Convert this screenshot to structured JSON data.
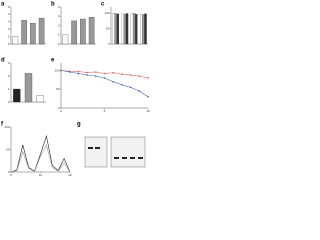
{
  "chart_data": [
    {
      "type": "bar",
      "title": "a",
      "categories": [
        null,
        null,
        null,
        null
      ],
      "values": [
        1,
        3.2,
        2.8,
        3.5
      ],
      "colors": [
        "#ffffff",
        "#999999",
        "#999999",
        "#999999"
      ],
      "ylim": [
        0,
        5
      ],
      "yticks": [
        0,
        1,
        2,
        3,
        4,
        5
      ]
    },
    {
      "type": "bar",
      "title": "b",
      "categories": [
        null,
        null,
        null,
        null
      ],
      "values": [
        1,
        2.5,
        2.7,
        2.9
      ],
      "colors": [
        "#ffffff",
        "#999999",
        "#999999",
        "#999999"
      ],
      "ylim": [
        0,
        4
      ],
      "yticks": [
        0,
        1,
        2,
        3,
        4
      ]
    },
    {
      "type": "grouped",
      "title": "c",
      "categories": [
        null,
        null,
        null,
        null
      ],
      "series": [
        {
          "color": "#ffffff",
          "values": [
            100,
            98,
            99,
            97
          ]
        },
        {
          "color": "#999999",
          "values": [
            99,
            97,
            100,
            96
          ]
        },
        {
          "color": "#333333",
          "values": [
            98,
            99,
            97,
            98
          ]
        }
      ],
      "ylim": [
        0,
        120
      ],
      "yticks": [
        0,
        50,
        100
      ]
    },
    {
      "type": "bar",
      "title": "d",
      "categories": [
        null,
        null,
        null
      ],
      "values": [
        1,
        2.2,
        0.5
      ],
      "colors": [
        "#222222",
        "#999999",
        "#ffffff"
      ],
      "ylim": [
        0,
        3
      ],
      "yticks": [
        0,
        1,
        2,
        3
      ]
    },
    {
      "type": "line",
      "title": "e",
      "x": [
        0,
        1,
        2,
        3,
        4,
        5,
        6,
        7,
        8,
        9,
        10
      ],
      "series": [
        {
          "color": "#d9534f",
          "values": [
            100,
            98,
            97,
            95,
            96,
            92,
            94,
            90,
            88,
            85,
            80
          ]
        },
        {
          "color": "#3a5fa8",
          "values": [
            100,
            96,
            92,
            88,
            85,
            80,
            70,
            62,
            55,
            45,
            30
          ]
        }
      ],
      "xlim": [
        0,
        10
      ],
      "xticks": [
        0,
        5,
        10
      ],
      "ylim": [
        0,
        120
      ],
      "yticks": [
        0,
        50,
        100
      ]
    },
    {
      "type": "line",
      "title": "f",
      "x": [
        0,
        2,
        4,
        6,
        8,
        10,
        12,
        14,
        16,
        18,
        20
      ],
      "series": [
        {
          "color": "#222222",
          "values": [
            0,
            5,
            60,
            10,
            2,
            40,
            80,
            15,
            3,
            30,
            0
          ]
        },
        {
          "color": "#999999",
          "values": [
            0,
            3,
            45,
            8,
            1,
            35,
            60,
            10,
            2,
            20,
            0
          ]
        }
      ],
      "xlim": [
        0,
        20
      ],
      "xticks": [
        0,
        10,
        20
      ],
      "ylim": [
        0,
        100
      ],
      "yticks": [
        0,
        50,
        100
      ]
    },
    {
      "type": "blot",
      "title": "g"
    }
  ]
}
